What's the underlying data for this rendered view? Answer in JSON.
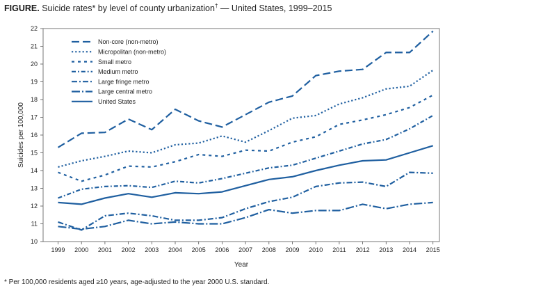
{
  "figure": {
    "label": "FIGURE.",
    "title": "Suicide rates* by level of county urbanization",
    "title_mark": "†",
    "title_suffix": " — United States, 1999–2015",
    "footnote": "* Per 100,000 residents aged ≥10 years, age-adjusted to the year 2000 U.S. standard."
  },
  "chart_data": {
    "type": "line",
    "xlabel": "Year",
    "ylabel": "Suicides per 100,000",
    "x": [
      1999,
      2000,
      2001,
      2002,
      2003,
      2004,
      2005,
      2006,
      2007,
      2008,
      2009,
      2010,
      2011,
      2012,
      2013,
      2014,
      2015
    ],
    "ylim": [
      10,
      22
    ],
    "yticks": [
      10,
      11,
      12,
      13,
      14,
      15,
      16,
      17,
      18,
      19,
      20,
      21,
      22
    ],
    "grid": false,
    "legend_position": "top-left",
    "color": "#1f5fa0",
    "series": [
      {
        "name": "Non-core (non-metro)",
        "dash": "long-dash",
        "values": [
          15.3,
          16.1,
          16.15,
          16.9,
          16.3,
          17.45,
          16.8,
          16.45,
          17.15,
          17.85,
          18.2,
          19.35,
          19.6,
          19.7,
          20.65,
          20.65,
          21.85
        ]
      },
      {
        "name": "Micropolitan (non-metro)",
        "dash": "dotted",
        "values": [
          14.2,
          14.55,
          14.8,
          15.1,
          15.0,
          15.45,
          15.55,
          15.95,
          15.6,
          16.25,
          16.95,
          17.1,
          17.75,
          18.1,
          18.6,
          18.75,
          19.65
        ]
      },
      {
        "name": "Small metro",
        "dash": "short-dash",
        "values": [
          13.9,
          13.4,
          13.75,
          14.25,
          14.2,
          14.5,
          14.9,
          14.8,
          15.15,
          15.1,
          15.6,
          15.9,
          16.6,
          16.85,
          17.15,
          17.55,
          18.25
        ]
      },
      {
        "name": "Medium metro",
        "dash": "dash-dot-small",
        "values": [
          12.45,
          12.95,
          13.1,
          13.15,
          13.05,
          13.4,
          13.3,
          13.55,
          13.85,
          14.15,
          14.3,
          14.7,
          15.1,
          15.5,
          15.75,
          16.35,
          17.1
        ]
      },
      {
        "name": "Large fringe metro",
        "dash": "dash-dot",
        "values": [
          11.1,
          10.65,
          11.45,
          11.6,
          11.45,
          11.2,
          11.2,
          11.35,
          11.85,
          12.25,
          12.5,
          13.1,
          13.3,
          13.35,
          13.1,
          13.9,
          13.85
        ]
      },
      {
        "name": "Large central metro",
        "dash": "long-dash-dot",
        "values": [
          10.85,
          10.7,
          10.85,
          11.2,
          11.0,
          11.1,
          11.0,
          11.0,
          11.35,
          11.8,
          11.6,
          11.75,
          11.75,
          12.1,
          11.85,
          12.1,
          12.2
        ]
      },
      {
        "name": "United States",
        "dash": "solid",
        "values": [
          12.2,
          12.1,
          12.45,
          12.7,
          12.5,
          12.75,
          12.7,
          12.8,
          13.15,
          13.5,
          13.65,
          14.0,
          14.3,
          14.55,
          14.6,
          15.0,
          15.4
        ]
      }
    ]
  }
}
